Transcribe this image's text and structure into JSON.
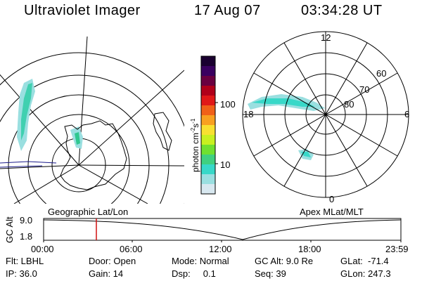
{
  "header": {
    "title": "Ultraviolet Imager",
    "date": "17 Aug 07",
    "time": "03:34:28 UT"
  },
  "colorbar": {
    "unit_label": "photon cm",
    "unit_exp1": "-2",
    "unit_mid": "s",
    "unit_exp2": "-1",
    "tick_100": "100",
    "tick_10": "10",
    "colors_top_to_bottom": [
      "#1a0030",
      "#3a0060",
      "#6a0040",
      "#b0001a",
      "#e01818",
      "#f06018",
      "#f8a020",
      "#f8e030",
      "#c8f020",
      "#70e030",
      "#40d080",
      "#38d8c8",
      "#9adfe0",
      "#d8e8f0"
    ]
  },
  "left_map": {
    "label": "Geographic Lat/Lon"
  },
  "right_map": {
    "label": "Apex MLat/MLT",
    "mlt_labels": {
      "top": "12",
      "left": "18",
      "right": "6",
      "bottom": "0"
    },
    "lat_labels": [
      "60",
      "70",
      "80"
    ]
  },
  "altitude_plot": {
    "ylabel": "GC Alt",
    "y_ticks": [
      "9.0",
      "1.8"
    ],
    "x_ticks": [
      "00:00",
      "06:00",
      "12:00",
      "18:00",
      "23:59"
    ],
    "marker_color": "#d01010"
  },
  "status": {
    "flt": "Flt: LBHL",
    "ip": "IP: 36.0",
    "door": "Door: Open",
    "gain": "Gain: 14",
    "mode": "Mode: Normal",
    "dsp": "Dsp:     0.1",
    "gc_alt": "GC Alt: 9.0 Re",
    "seq": "Seq: 39",
    "glat": "GLat:  -71.4",
    "glon": "GLon: 247.3"
  }
}
